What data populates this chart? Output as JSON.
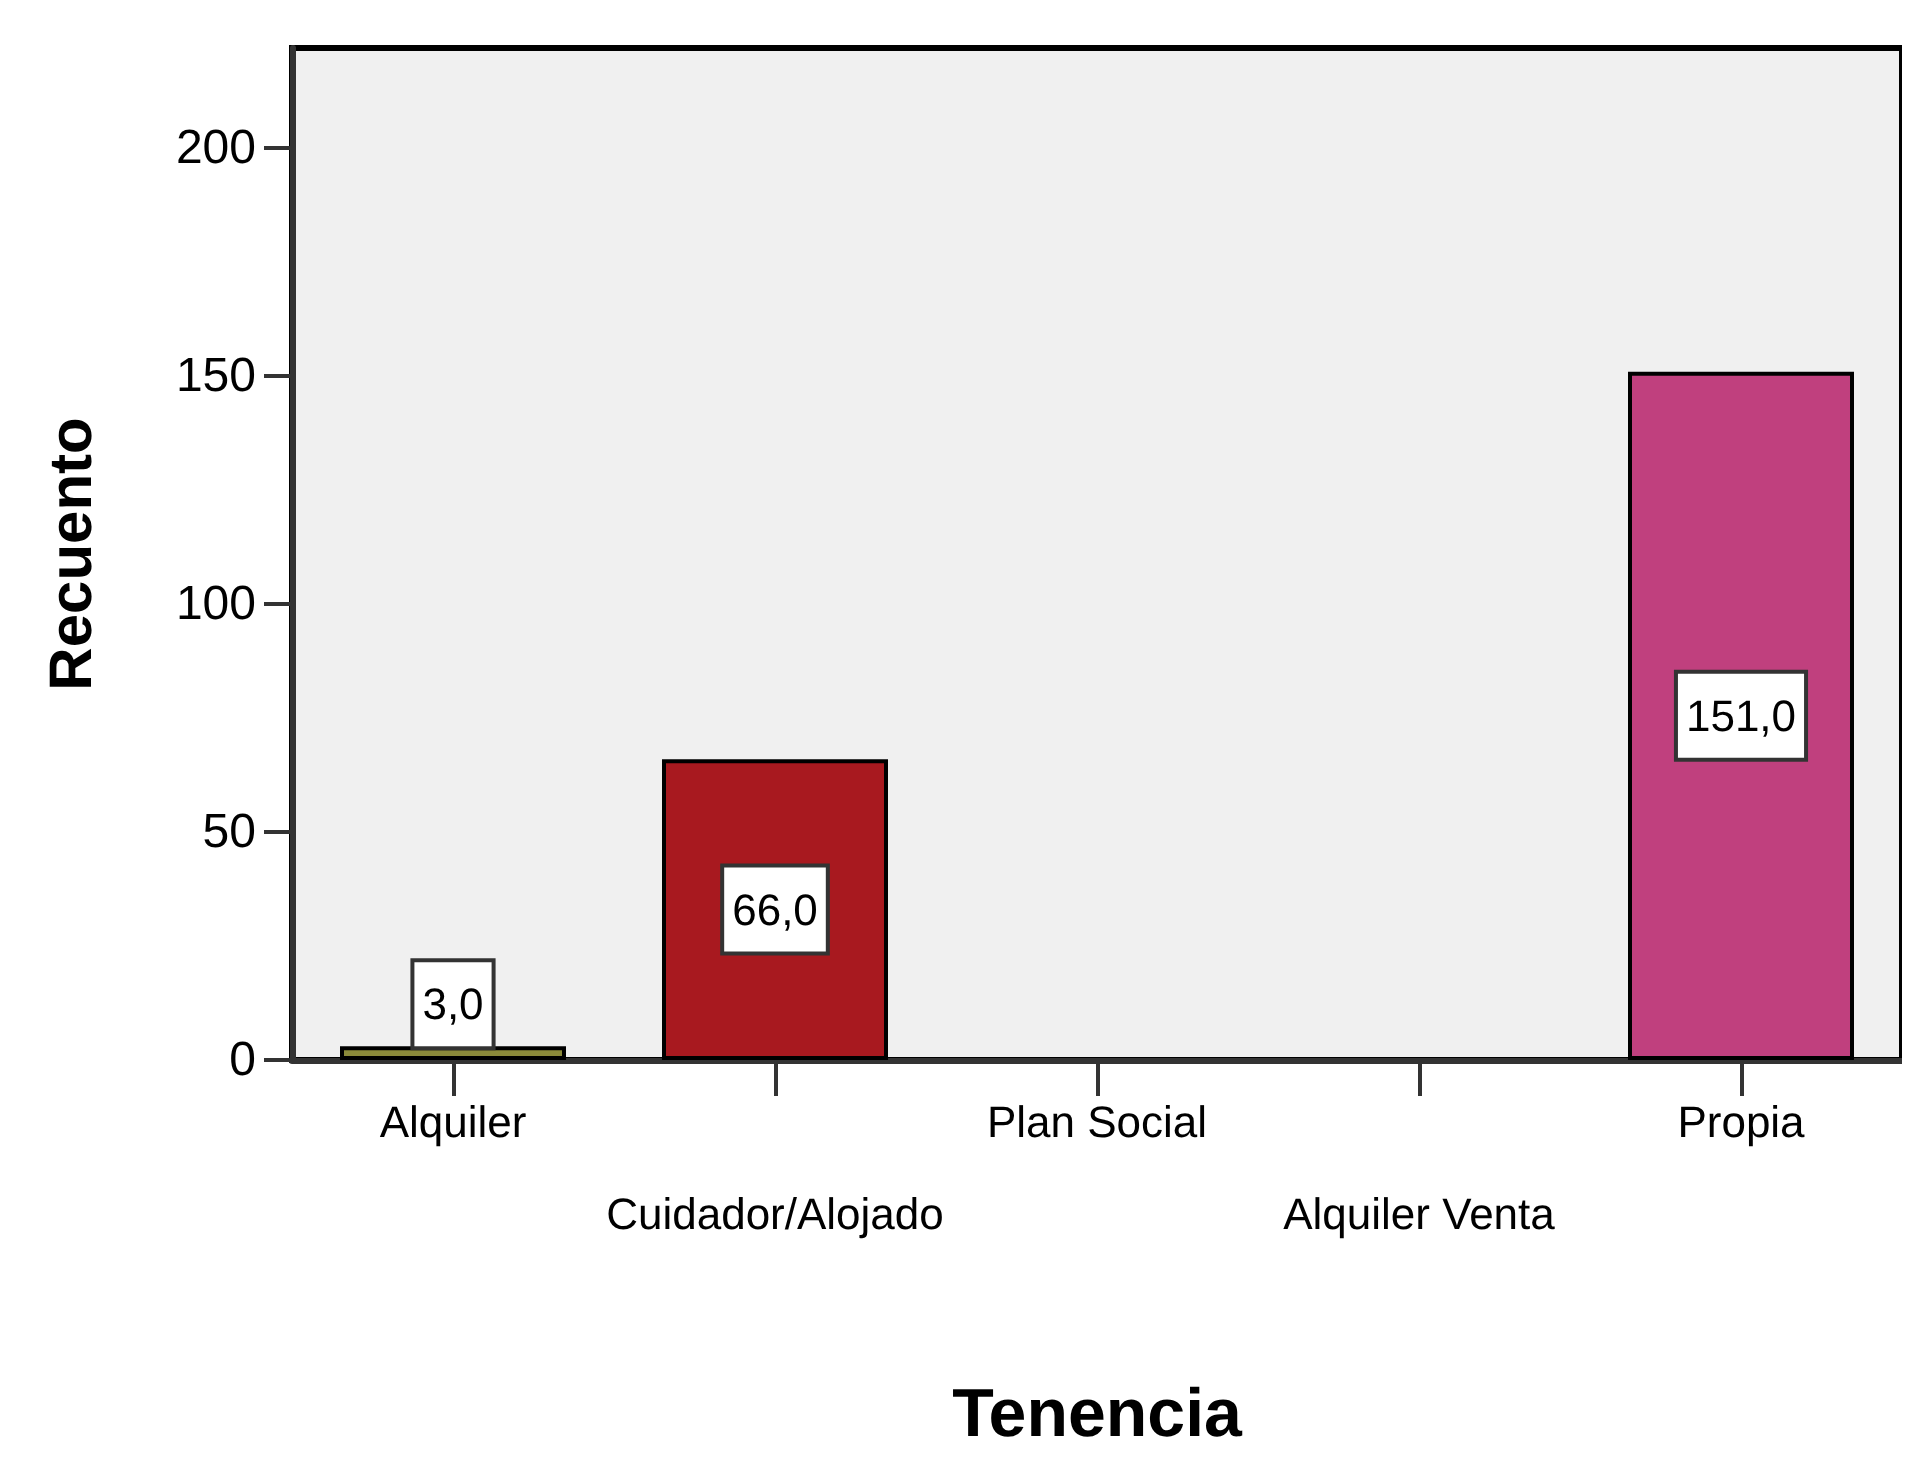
{
  "chart_data": {
    "type": "bar",
    "xlabel": "Tenencia",
    "ylabel": "Recuento",
    "categories": [
      "Alquiler",
      "Cuidador/Alojado",
      "Plan Social",
      "Alquiler Venta",
      "Propia"
    ],
    "values": [
      3,
      66,
      0,
      0,
      151
    ],
    "colors": [
      "#8b8a3a",
      "#a8191f",
      null,
      null,
      "#c0407e"
    ],
    "value_labels": [
      "3,0",
      "66,0",
      null,
      null,
      "151,0"
    ],
    "ylim": [
      0,
      222
    ],
    "yticks": [
      0,
      50,
      100,
      150,
      200
    ],
    "grid": false
  }
}
